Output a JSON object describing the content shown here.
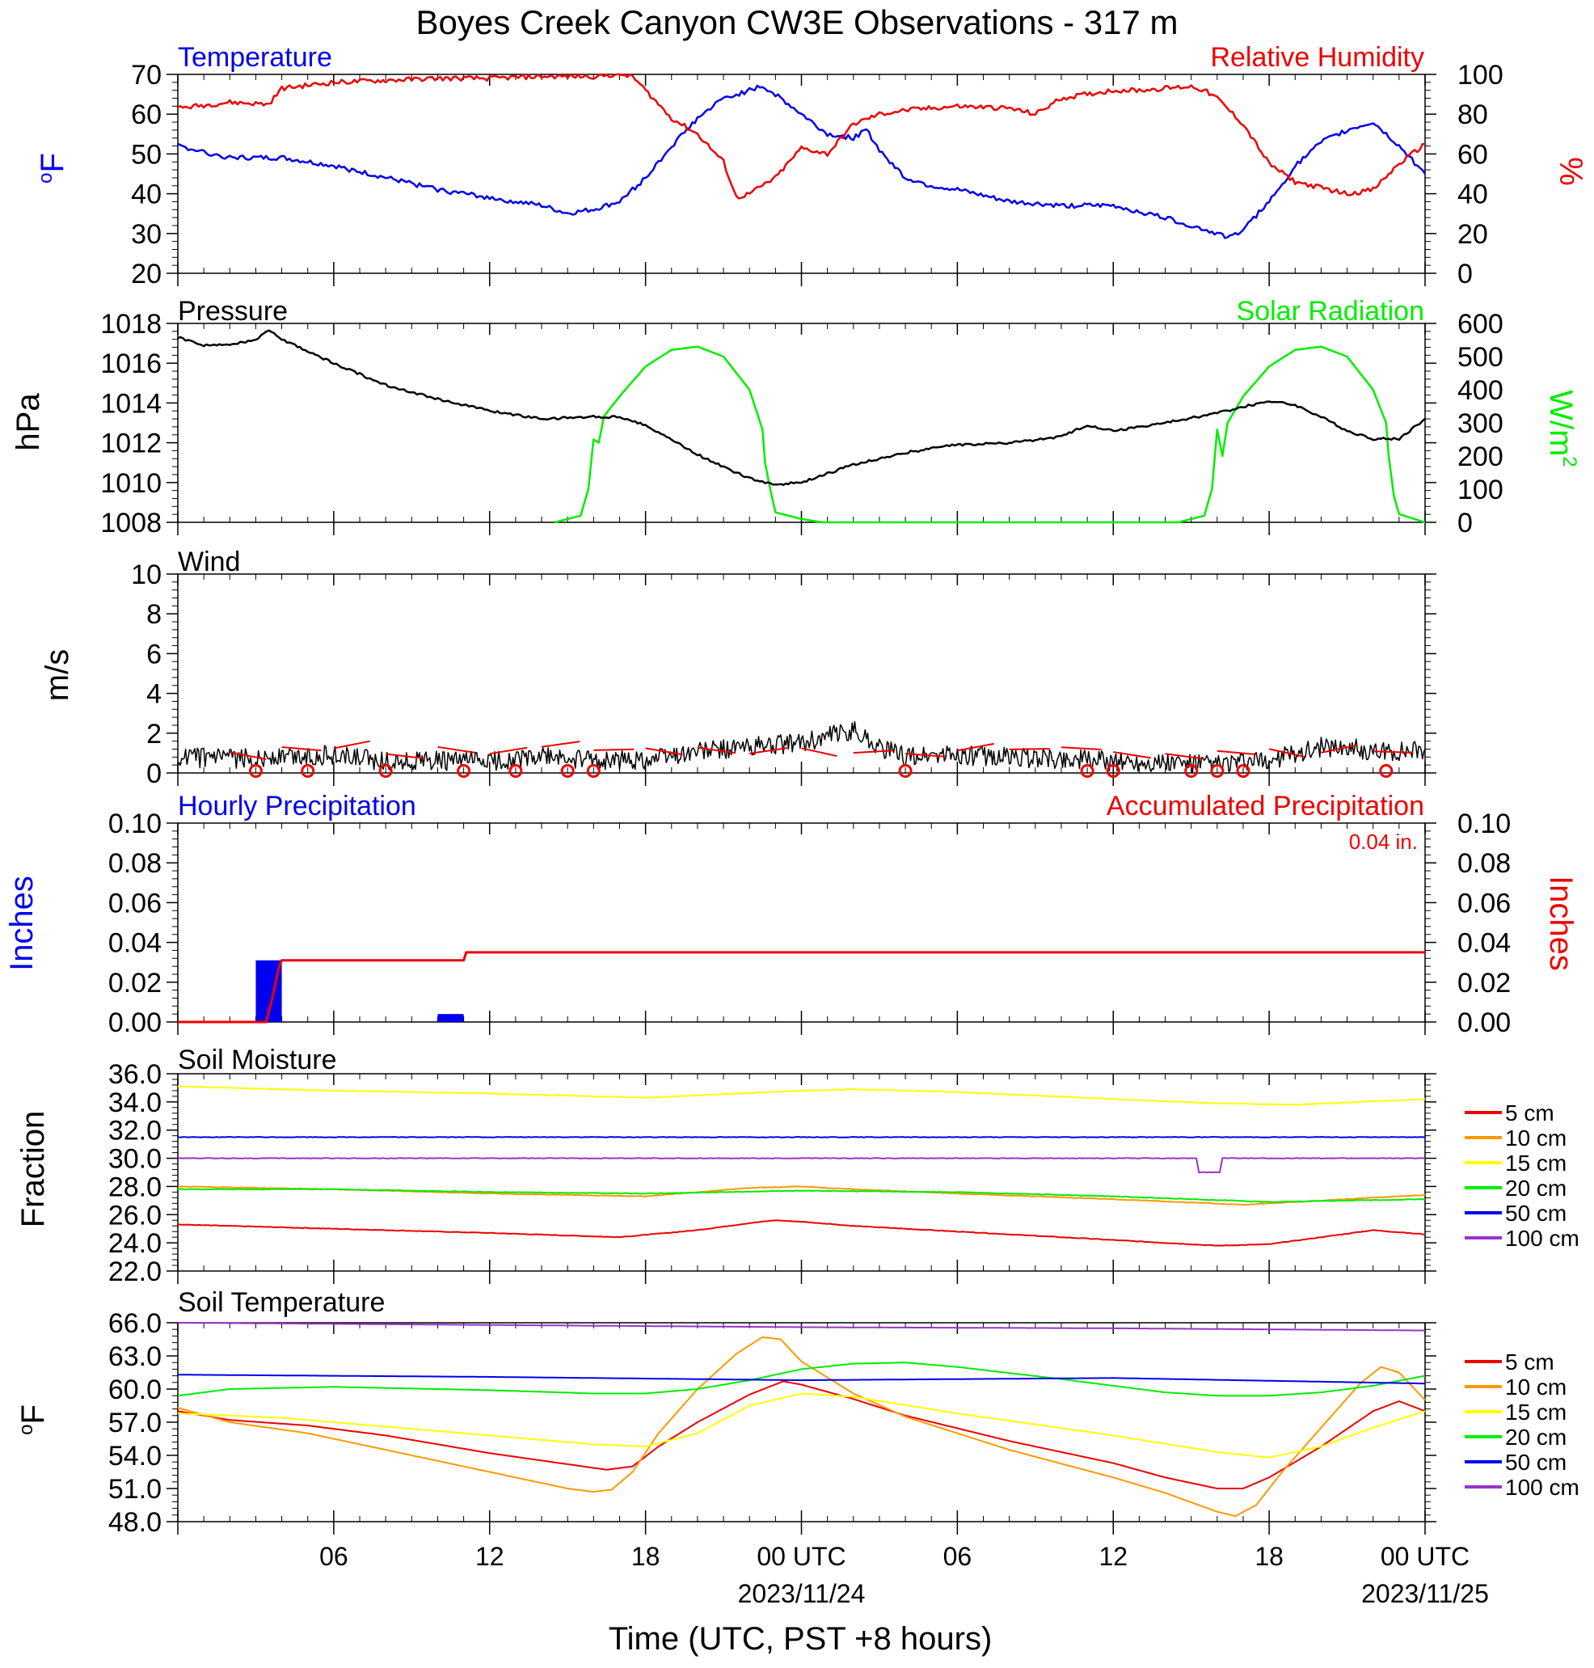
{
  "title": "Boyes Creek Canyon CW3E Observations - 317 m",
  "xaxis": {
    "title": "Time (UTC, PST +8 hours)",
    "tick_hours": [
      6,
      12,
      18,
      24,
      30,
      36,
      42,
      48
    ],
    "tick_labels": [
      "06",
      "12",
      "18",
      "00 UTC",
      "06",
      "12",
      "18",
      "00 UTC"
    ],
    "date_labels": [
      {
        "hour": 24,
        "text": "2023/11/24"
      },
      {
        "hour": 48,
        "text": "2023/11/25"
      }
    ],
    "range_hours": [
      0,
      48
    ]
  },
  "colors": {
    "blue": "#0000ee",
    "red": "#ee0000",
    "green": "#00ee00",
    "black": "#000000",
    "orange": "#ff9900",
    "yellow": "#ffff00",
    "purple": "#9933cc"
  },
  "legend": {
    "items": [
      {
        "label": "5 cm",
        "color": "#ee0000"
      },
      {
        "label": "10 cm",
        "color": "#ff9900"
      },
      {
        "label": "15 cm",
        "color": "#ffff00"
      },
      {
        "label": "20 cm",
        "color": "#00ee00"
      },
      {
        "label": "50 cm",
        "color": "#0000ee"
      },
      {
        "label": "100 cm",
        "color": "#9933cc"
      }
    ]
  },
  "panels": {
    "temp_rh": {
      "left_title": "Temperature",
      "right_title": "Relative Humidity",
      "left_unit": "oF",
      "right_unit": "%",
      "left_ticks": [
        "70",
        "60",
        "50",
        "40",
        "30",
        "20"
      ],
      "right_ticks": [
        "100",
        "80",
        "60",
        "40",
        "20",
        "0"
      ]
    },
    "pressure_solar": {
      "left_title": "Pressure",
      "right_title": "Solar Radiation",
      "left_unit": "hPa",
      "right_unit_base": "W/m",
      "right_unit_sup": "2",
      "left_ticks": [
        "1018",
        "1016",
        "1014",
        "1012",
        "1010",
        "1008"
      ],
      "right_ticks": [
        "600",
        "500",
        "400",
        "300",
        "200",
        "100",
        "0"
      ]
    },
    "wind": {
      "left_title": "Wind",
      "left_unit": "m/s",
      "left_ticks": [
        "10",
        "8",
        "6",
        "4",
        "2",
        "0"
      ]
    },
    "precip": {
      "left_title": "Hourly Precipitation",
      "right_title": "Accumulated Precipitation",
      "total_label": "0.04 in.",
      "left_unit": "Inches",
      "right_unit": "Inches",
      "left_ticks": [
        "0.10",
        "0.08",
        "0.06",
        "0.04",
        "0.02",
        "0.00"
      ],
      "right_ticks": [
        "0.10",
        "0.08",
        "0.06",
        "0.04",
        "0.02",
        "0.00"
      ]
    },
    "soil_moisture": {
      "left_title": "Soil Moisture",
      "left_unit": "Fraction",
      "left_ticks": [
        "36.0",
        "34.0",
        "32.0",
        "30.0",
        "28.0",
        "26.0",
        "24.0",
        "22.0"
      ]
    },
    "soil_temp": {
      "left_title": "Soil Temperature",
      "left_unit": "oF",
      "left_ticks": [
        "66.0",
        "63.0",
        "60.0",
        "57.0",
        "54.0",
        "51.0",
        "48.0"
      ]
    }
  },
  "chart_data": [
    {
      "type": "line",
      "title": "Temperature / Relative Humidity",
      "ylim_left": [
        20,
        70
      ],
      "ylim_right": [
        0,
        100
      ],
      "series": [
        {
          "name": "Temperature",
          "axis": "left",
          "unit": "°F",
          "color": "#0000ee",
          "hours": [
            0,
            2,
            4,
            6,
            8,
            10,
            12,
            14,
            15,
            16,
            17,
            18,
            19,
            20,
            21,
            22,
            22.5,
            23,
            24,
            25,
            26,
            26.5,
            27,
            28,
            29,
            30,
            32,
            34,
            36,
            38,
            40,
            40.5,
            41,
            42,
            43,
            44,
            45,
            46,
            47,
            48
          ],
          "values": [
            52,
            49,
            49,
            47,
            44,
            41,
            39,
            37,
            35,
            36,
            38,
            44,
            52,
            59,
            64,
            66,
            67,
            65,
            60,
            55,
            54,
            56,
            51,
            44,
            42,
            41,
            38,
            37,
            37,
            34,
            30,
            29,
            31,
            38,
            47,
            53,
            56,
            58,
            52,
            45
          ]
        },
        {
          "name": "Relative Humidity",
          "axis": "right",
          "unit": "%",
          "color": "#ee0000",
          "hours": [
            0,
            2,
            3.5,
            4,
            6,
            8,
            10,
            12,
            14,
            16,
            17,
            17.5,
            18,
            19,
            20,
            21,
            21.5,
            22,
            23,
            24,
            25,
            26,
            27,
            28,
            30,
            32,
            33,
            34,
            35,
            36,
            37,
            38,
            39,
            39.5,
            40,
            41,
            42,
            43,
            44,
            45,
            46,
            47,
            48
          ],
          "values": [
            83,
            86,
            85,
            93,
            96,
            97,
            98,
            98,
            99,
            99,
            100,
            99,
            92,
            78,
            70,
            56,
            38,
            40,
            48,
            63,
            60,
            75,
            80,
            82,
            84,
            83,
            80,
            88,
            90,
            92,
            92,
            93,
            94,
            92,
            88,
            75,
            55,
            46,
            43,
            40,
            42,
            55,
            65
          ]
        }
      ]
    },
    {
      "type": "line",
      "title": "Pressure / Solar Radiation",
      "ylim_left": [
        1008,
        1018
      ],
      "ylim_right": [
        0,
        600
      ],
      "series": [
        {
          "name": "Pressure",
          "axis": "left",
          "unit": "hPa",
          "color": "#000000",
          "hours": [
            0,
            1,
            2,
            3,
            3.5,
            4,
            5,
            6,
            8,
            10,
            12,
            14,
            16,
            17,
            18,
            20,
            22,
            23,
            24,
            26,
            28,
            30,
            32,
            34,
            35,
            36,
            38,
            40,
            41,
            42,
            43,
            44,
            45,
            46,
            47,
            48
          ],
          "values": [
            1017.3,
            1016.9,
            1016.9,
            1017.2,
            1017.7,
            1017.2,
            1016.6,
            1016.0,
            1014.9,
            1014.2,
            1013.6,
            1013.2,
            1013.3,
            1013.3,
            1012.9,
            1011.4,
            1010.2,
            1009.9,
            1010.0,
            1010.9,
            1011.5,
            1011.9,
            1012.0,
            1012.3,
            1012.9,
            1012.6,
            1013.0,
            1013.5,
            1013.8,
            1014.1,
            1013.9,
            1013.3,
            1012.6,
            1012.2,
            1012.2,
            1013.2
          ]
        },
        {
          "name": "Solar Radiation",
          "axis": "right",
          "unit": "W/m2",
          "color": "#00ee00",
          "hours": [
            14.5,
            15.5,
            15.8,
            16,
            16.2,
            16.4,
            17,
            18,
            19,
            20,
            21,
            22,
            22.5,
            22.6,
            22.8,
            23,
            24,
            24.8,
            38.5,
            39.5,
            39.8,
            40,
            40.2,
            40.4,
            41,
            42,
            43,
            44,
            45,
            46,
            46.5,
            46.6,
            46.8,
            47,
            48
          ],
          "values": [
            0,
            20,
            100,
            250,
            240,
            320,
            380,
            470,
            520,
            530,
            500,
            400,
            280,
            180,
            100,
            30,
            10,
            0,
            0,
            20,
            100,
            280,
            200,
            300,
            380,
            470,
            520,
            530,
            500,
            400,
            300,
            200,
            80,
            25,
            0
          ]
        }
      ]
    },
    {
      "type": "line",
      "title": "Wind",
      "ylim": [
        0,
        10
      ],
      "unit": "m/s",
      "series": [
        {
          "name": "Wind",
          "color": "#000000",
          "hours": [
            0,
            2,
            4,
            6,
            8,
            10,
            12,
            14,
            16,
            18,
            20,
            21,
            22,
            23,
            24,
            25,
            26,
            27,
            28,
            29,
            30,
            32,
            34,
            36,
            38,
            40,
            41,
            42,
            43,
            44,
            45,
            46,
            47,
            48
          ],
          "values": [
            0.8,
            0.7,
            0.8,
            0.9,
            0.6,
            0.6,
            0.6,
            0.8,
            0.6,
            0.7,
            1.1,
            1.2,
            1.3,
            1.4,
            1.5,
            1.8,
            2.2,
            1.3,
            0.8,
            0.9,
            0.9,
            0.8,
            0.7,
            0.6,
            0.5,
            0.4,
            0.5,
            0.6,
            1.0,
            1.3,
            1.3,
            1.0,
            1.1,
            1.2
          ]
        }
      ],
      "calm_hours": [
        3,
        5,
        8,
        11,
        13,
        15,
        16,
        28,
        35,
        36,
        39,
        40,
        41,
        46.5
      ]
    },
    {
      "type": "bar",
      "title": "Hourly Precipitation",
      "ylim": [
        0,
        0.1
      ],
      "unit": "inches",
      "hours": [
        3,
        10
      ],
      "values": [
        0.031,
        0.004
      ],
      "accumulated": {
        "name": "Accumulated Precipitation",
        "hours": [
          0,
          3.4,
          3.6,
          3.9,
          4,
          11,
          11.1,
          48
        ],
        "values": [
          0,
          0,
          0.01,
          0.028,
          0.031,
          0.031,
          0.035,
          0.035
        ]
      }
    },
    {
      "type": "line",
      "title": "Soil Moisture",
      "ylim": [
        22,
        36
      ],
      "series": [
        {
          "name": "5 cm",
          "color": "#ee0000",
          "hours": [
            0,
            6,
            12,
            17,
            20,
            22,
            23,
            24,
            26,
            30,
            36,
            40,
            42,
            44,
            46,
            48
          ],
          "values": [
            25.3,
            25.0,
            24.7,
            24.4,
            24.9,
            25.4,
            25.6,
            25.5,
            25.2,
            24.8,
            24.2,
            23.8,
            23.9,
            24.4,
            24.9,
            24.6
          ]
        },
        {
          "name": "10 cm",
          "color": "#ff9900",
          "hours": [
            0,
            6,
            12,
            18,
            22,
            24,
            26,
            30,
            36,
            41,
            44,
            48
          ],
          "values": [
            28.0,
            27.8,
            27.5,
            27.3,
            27.9,
            28.0,
            27.8,
            27.5,
            27.1,
            26.7,
            27.0,
            27.4
          ]
        },
        {
          "name": "15 cm",
          "color": "#ffff00",
          "hours": [
            0,
            6,
            12,
            18,
            24,
            26,
            30,
            36,
            40,
            43,
            48
          ],
          "values": [
            35.1,
            34.8,
            34.6,
            34.3,
            34.8,
            34.9,
            34.7,
            34.2,
            33.9,
            33.8,
            34.2
          ]
        },
        {
          "name": "20 cm",
          "color": "#00ee00",
          "hours": [
            0,
            6,
            12,
            18,
            24,
            30,
            36,
            42,
            48
          ],
          "values": [
            27.8,
            27.8,
            27.6,
            27.5,
            27.7,
            27.6,
            27.3,
            26.9,
            27.1
          ]
        },
        {
          "name": "50 cm",
          "color": "#0000ee",
          "hours": [
            0,
            48
          ],
          "values": [
            31.5,
            31.5
          ]
        },
        {
          "name": "100 cm",
          "color": "#9933cc",
          "hours": [
            0,
            39.2,
            39.3,
            40.1,
            40.2,
            48
          ],
          "values": [
            30.0,
            30.0,
            29.0,
            29.0,
            30.0,
            30.0
          ]
        }
      ]
    },
    {
      "type": "line",
      "title": "Soil Temperature",
      "ylim": [
        48,
        66
      ],
      "series": [
        {
          "name": "5 cm",
          "color": "#ee0000",
          "hours": [
            0,
            2,
            5,
            8,
            12,
            15,
            16.5,
            17.5,
            18.5,
            20,
            22,
            23.3,
            24,
            26,
            28,
            32,
            36,
            38,
            40,
            41,
            42,
            44,
            46,
            47,
            48
          ],
          "values": [
            58.0,
            57.2,
            56.7,
            55.8,
            54.2,
            53.2,
            52.7,
            53.0,
            54.8,
            57.0,
            59.5,
            60.7,
            60.4,
            59.1,
            57.6,
            55.3,
            53.3,
            52.0,
            51.0,
            51.0,
            52.0,
            54.8,
            58.0,
            58.9,
            58.0
          ]
        },
        {
          "name": "10 cm",
          "color": "#ff9900",
          "hours": [
            0,
            2,
            5,
            8,
            12,
            15,
            16,
            16.7,
            17.5,
            18.5,
            20,
            21.5,
            22.5,
            23.2,
            24,
            26,
            28,
            32,
            36,
            38,
            40,
            40.7,
            41.5,
            42.5,
            44,
            45.5,
            46.3,
            47,
            48
          ],
          "values": [
            58.3,
            57.0,
            56.0,
            54.5,
            52.5,
            51.0,
            50.7,
            50.9,
            52.5,
            56.0,
            60.0,
            63.2,
            64.7,
            64.5,
            62.5,
            59.6,
            57.5,
            54.5,
            52.0,
            50.6,
            48.9,
            48.5,
            49.5,
            52.5,
            56.5,
            60.5,
            62.0,
            61.5,
            59.0
          ]
        },
        {
          "name": "15 cm",
          "color": "#ffff00",
          "hours": [
            0,
            4,
            8,
            12,
            16,
            18,
            20,
            22,
            24,
            26,
            30,
            36,
            40,
            42,
            44,
            46,
            48
          ],
          "values": [
            57.8,
            57.4,
            56.6,
            55.8,
            55.0,
            54.8,
            56.0,
            58.5,
            59.6,
            59.3,
            57.8,
            55.8,
            54.3,
            53.8,
            54.8,
            56.5,
            58.0
          ]
        },
        {
          "name": "20 cm",
          "color": "#00ee00",
          "hours": [
            0,
            2,
            6,
            12,
            16,
            18,
            20,
            22,
            24,
            26,
            28,
            30,
            34,
            38,
            40,
            42,
            44,
            46,
            48
          ],
          "values": [
            59.4,
            60.0,
            60.2,
            59.9,
            59.6,
            59.6,
            60.0,
            60.8,
            61.8,
            62.3,
            62.4,
            62.0,
            60.9,
            59.7,
            59.4,
            59.4,
            59.7,
            60.3,
            61.2
          ]
        },
        {
          "name": "50 cm",
          "color": "#0000ee",
          "hours": [
            0,
            12,
            24,
            36,
            48
          ],
          "values": [
            61.3,
            61.1,
            60.8,
            61.0,
            60.5
          ]
        },
        {
          "name": "100 cm",
          "color": "#9933cc",
          "hours": [
            0,
            12,
            24,
            36,
            48
          ],
          "values": [
            66.0,
            65.8,
            65.6,
            65.5,
            65.3
          ]
        }
      ]
    }
  ]
}
